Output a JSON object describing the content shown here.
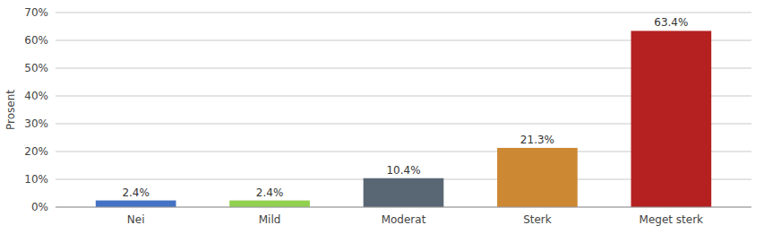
{
  "chart_data": {
    "type": "bar",
    "categories": [
      "Nei",
      "Mild",
      "Moderat",
      "Sterk",
      "Meget sterk"
    ],
    "values": [
      2.4,
      2.4,
      10.4,
      21.3,
      63.4
    ],
    "value_labels": [
      "2.4%",
      "2.4%",
      "10.4%",
      "21.3%",
      "63.4%"
    ],
    "colors": [
      "#4472C4",
      "#92D050",
      "#596673",
      "#CC8833",
      "#B52020"
    ],
    "ylabel": "Prosent",
    "ylim": [
      0,
      70
    ],
    "yticks": [
      {
        "value": 0,
        "label": "0%"
      },
      {
        "value": 10,
        "label": "10%"
      },
      {
        "value": 20,
        "label": "20%"
      },
      {
        "value": 30,
        "label": "30%"
      },
      {
        "value": 40,
        "label": "40%"
      },
      {
        "value": 50,
        "label": "50%"
      },
      {
        "value": 60,
        "label": "60%"
      },
      {
        "value": 70,
        "label": "70%"
      }
    ],
    "grid": true,
    "data_labels": true
  }
}
